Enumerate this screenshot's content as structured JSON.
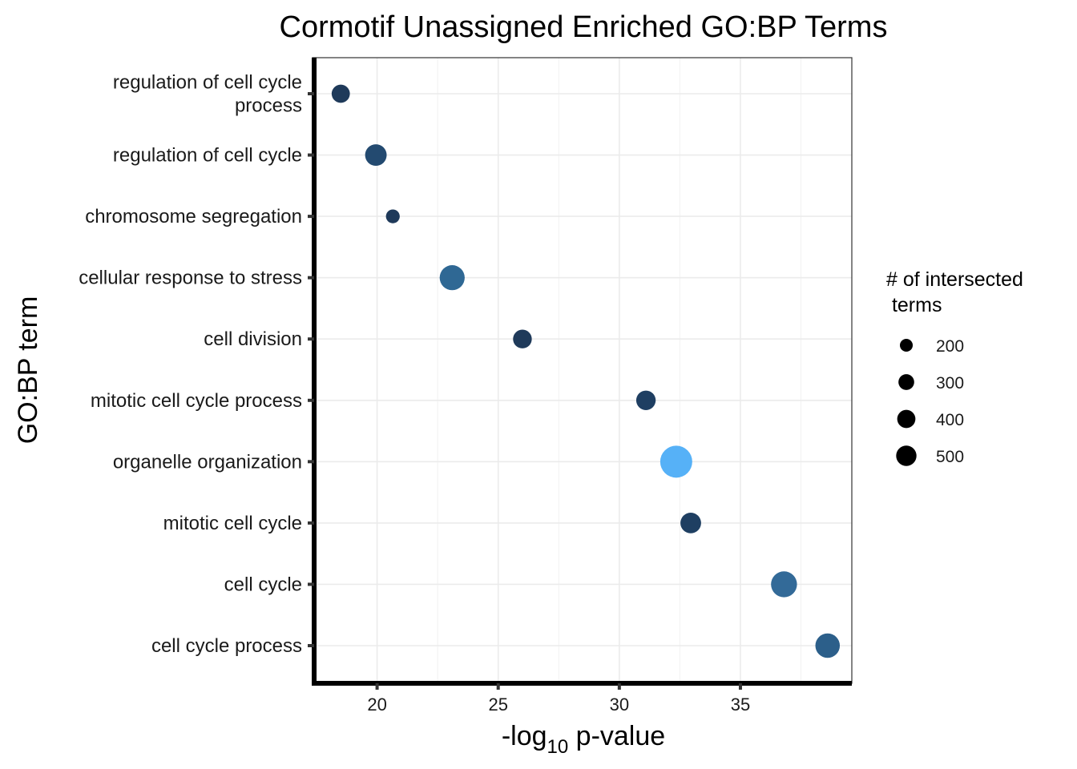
{
  "chart_data": {
    "type": "scatter",
    "title": "Cormotif Unassigned Enriched GO:BP Terms",
    "xlabel": "-log10 p-value",
    "xlabel_main": "-log",
    "xlabel_sub": "10",
    "xlabel_rest": " p-value",
    "ylabel": "GO:BP term",
    "xlim": [
      17.4,
      39.6
    ],
    "xticks": [
      20,
      25,
      30,
      35
    ],
    "grid": true,
    "legend": {
      "title_lines": [
        "# of intersected",
        " terms"
      ],
      "position": "right",
      "sizes": [
        200,
        300,
        400,
        500
      ]
    },
    "categories": [
      [
        "regulation of cell cycle",
        "process"
      ],
      [
        "regulation of cell cycle"
      ],
      [
        "chromosome segregation"
      ],
      [
        "cellular response to stress"
      ],
      [
        "cell division"
      ],
      [
        "mitotic cell cycle process"
      ],
      [
        "organelle organization"
      ],
      [
        "mitotic cell cycle"
      ],
      [
        "cell cycle"
      ],
      [
        "cell cycle process"
      ]
    ],
    "points": [
      {
        "x": 18.5,
        "size": 175,
        "color": "#1f3a5a"
      },
      {
        "x": 19.95,
        "size": 245,
        "color": "#234a70"
      },
      {
        "x": 20.65,
        "size": 100,
        "color": "#1f3a5a"
      },
      {
        "x": 23.1,
        "size": 330,
        "color": "#2f6894"
      },
      {
        "x": 26.0,
        "size": 185,
        "color": "#1f3a5a"
      },
      {
        "x": 31.1,
        "size": 200,
        "color": "#1f3f62"
      },
      {
        "x": 32.35,
        "size": 540,
        "color": "#56b1f7"
      },
      {
        "x": 32.95,
        "size": 225,
        "color": "#1f3f62"
      },
      {
        "x": 36.8,
        "size": 355,
        "color": "#336a98"
      },
      {
        "x": 38.6,
        "size": 315,
        "color": "#2c5f8a"
      }
    ]
  }
}
